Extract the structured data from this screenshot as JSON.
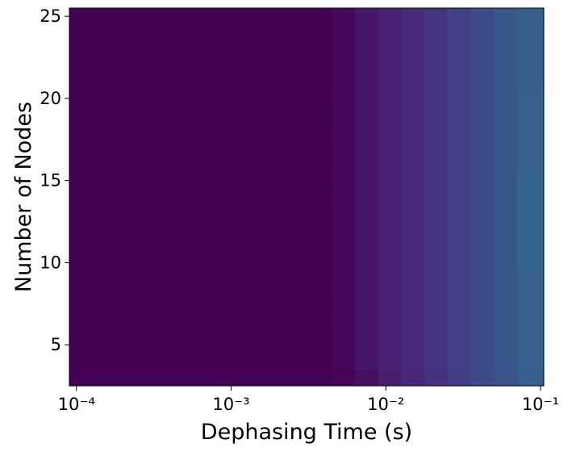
{
  "chart_data": {
    "type": "heatmap",
    "colormap": "viridis",
    "xlabel": "Dephasing Time (s)",
    "ylabel": "Number of Nodes",
    "xscale": "log",
    "xlim": [
      9e-05,
      0.105
    ],
    "ylim": [
      2.5,
      25.5
    ],
    "xticks": [
      {
        "value": 0.0001,
        "label": "10⁻⁴"
      },
      {
        "value": 0.001,
        "label": "10⁻³"
      },
      {
        "value": 0.01,
        "label": "10⁻²"
      },
      {
        "value": 0.1,
        "label": "10⁻¹"
      }
    ],
    "yticks": [
      5,
      10,
      15,
      20,
      25
    ],
    "x_edges": [
      9e-05,
      0.000141,
      0.0002,
      0.000282,
      0.000398,
      0.000562,
      0.000794,
      0.00112,
      0.00158,
      0.00224,
      0.00316,
      0.00447,
      0.00631,
      0.00891,
      0.0126,
      0.0178,
      0.0251,
      0.0355,
      0.0501,
      0.0708,
      0.105
    ],
    "y": [
      3,
      4,
      5,
      6,
      7,
      8,
      9,
      10,
      11,
      12,
      13,
      14,
      15,
      16,
      17,
      18,
      19,
      20,
      21,
      22,
      23,
      24,
      25
    ],
    "values": [
      [
        0,
        0,
        0,
        0,
        0,
        0,
        0,
        0,
        0,
        0,
        0,
        0.01,
        0.04,
        0.08,
        0.11,
        0.14,
        0.18,
        0.22,
        0.26,
        0.3
      ],
      [
        0,
        0,
        0,
        0,
        0,
        0,
        0,
        0,
        0,
        0,
        0,
        0.02,
        0.06,
        0.09,
        0.12,
        0.15,
        0.19,
        0.23,
        0.27,
        0.31
      ],
      [
        0,
        0,
        0,
        0,
        0,
        0,
        0,
        0,
        0,
        0,
        0,
        0.02,
        0.06,
        0.09,
        0.12,
        0.15,
        0.19,
        0.23,
        0.27,
        0.31
      ],
      [
        0,
        0,
        0,
        0,
        0,
        0,
        0,
        0,
        0,
        0,
        0,
        0.02,
        0.06,
        0.09,
        0.12,
        0.15,
        0.19,
        0.23,
        0.27,
        0.31
      ],
      [
        0,
        0,
        0,
        0,
        0,
        0,
        0,
        0,
        0,
        0,
        0,
        0.02,
        0.06,
        0.09,
        0.12,
        0.15,
        0.19,
        0.23,
        0.27,
        0.31
      ],
      [
        0,
        0,
        0,
        0,
        0,
        0,
        0,
        0,
        0,
        0,
        0,
        0.02,
        0.06,
        0.09,
        0.12,
        0.15,
        0.19,
        0.23,
        0.27,
        0.31
      ],
      [
        0,
        0,
        0,
        0,
        0,
        0,
        0,
        0,
        0,
        0,
        0,
        0.02,
        0.06,
        0.09,
        0.12,
        0.15,
        0.19,
        0.23,
        0.27,
        0.31
      ],
      [
        0,
        0,
        0,
        0,
        0,
        0,
        0,
        0,
        0,
        0,
        0,
        0.02,
        0.06,
        0.09,
        0.12,
        0.15,
        0.19,
        0.23,
        0.27,
        0.32
      ],
      [
        0,
        0,
        0,
        0,
        0,
        0,
        0,
        0,
        0,
        0,
        0,
        0.02,
        0.06,
        0.09,
        0.12,
        0.15,
        0.19,
        0.23,
        0.27,
        0.32
      ],
      [
        0,
        0,
        0,
        0,
        0,
        0,
        0,
        0,
        0,
        0,
        0,
        0.02,
        0.06,
        0.09,
        0.12,
        0.15,
        0.19,
        0.23,
        0.27,
        0.32
      ],
      [
        0,
        0,
        0,
        0,
        0,
        0,
        0,
        0,
        0,
        0,
        0,
        0.02,
        0.06,
        0.09,
        0.12,
        0.15,
        0.19,
        0.23,
        0.27,
        0.32
      ],
      [
        0,
        0,
        0,
        0,
        0,
        0,
        0,
        0,
        0,
        0,
        0,
        0.02,
        0.06,
        0.09,
        0.12,
        0.15,
        0.19,
        0.23,
        0.27,
        0.32
      ],
      [
        0,
        0,
        0,
        0,
        0,
        0,
        0,
        0,
        0,
        0,
        0,
        0.02,
        0.06,
        0.09,
        0.12,
        0.15,
        0.19,
        0.23,
        0.27,
        0.32
      ],
      [
        0,
        0,
        0,
        0,
        0,
        0,
        0,
        0,
        0,
        0,
        0,
        0.02,
        0.06,
        0.09,
        0.12,
        0.15,
        0.19,
        0.23,
        0.27,
        0.31
      ],
      [
        0,
        0,
        0,
        0,
        0,
        0,
        0,
        0,
        0,
        0,
        0,
        0.02,
        0.06,
        0.09,
        0.12,
        0.15,
        0.19,
        0.23,
        0.27,
        0.31
      ],
      [
        0,
        0,
        0,
        0,
        0,
        0,
        0,
        0,
        0,
        0,
        0,
        0.02,
        0.06,
        0.09,
        0.12,
        0.15,
        0.19,
        0.23,
        0.27,
        0.31
      ],
      [
        0,
        0,
        0,
        0,
        0,
        0,
        0,
        0,
        0,
        0,
        0,
        0.02,
        0.06,
        0.09,
        0.12,
        0.15,
        0.19,
        0.23,
        0.27,
        0.31
      ],
      [
        0,
        0,
        0,
        0,
        0,
        0,
        0,
        0,
        0,
        0,
        0,
        0.02,
        0.06,
        0.09,
        0.12,
        0.15,
        0.19,
        0.23,
        0.27,
        0.31
      ],
      [
        0,
        0,
        0,
        0,
        0,
        0,
        0,
        0,
        0,
        0,
        0,
        0.02,
        0.06,
        0.09,
        0.12,
        0.15,
        0.19,
        0.23,
        0.27,
        0.3
      ],
      [
        0,
        0,
        0,
        0,
        0,
        0,
        0,
        0,
        0,
        0,
        0,
        0.02,
        0.06,
        0.09,
        0.12,
        0.15,
        0.19,
        0.23,
        0.27,
        0.3
      ],
      [
        0,
        0,
        0,
        0,
        0,
        0,
        0,
        0,
        0,
        0,
        0,
        0.02,
        0.06,
        0.09,
        0.12,
        0.15,
        0.19,
        0.23,
        0.27,
        0.3
      ],
      [
        0,
        0,
        0,
        0,
        0,
        0,
        0,
        0,
        0,
        0,
        0,
        0.02,
        0.06,
        0.09,
        0.12,
        0.15,
        0.19,
        0.23,
        0.27,
        0.3
      ],
      [
        0,
        0,
        0,
        0,
        0,
        0,
        0,
        0,
        0,
        0,
        0,
        0.02,
        0.06,
        0.09,
        0.12,
        0.15,
        0.19,
        0.23,
        0.27,
        0.3
      ]
    ]
  }
}
